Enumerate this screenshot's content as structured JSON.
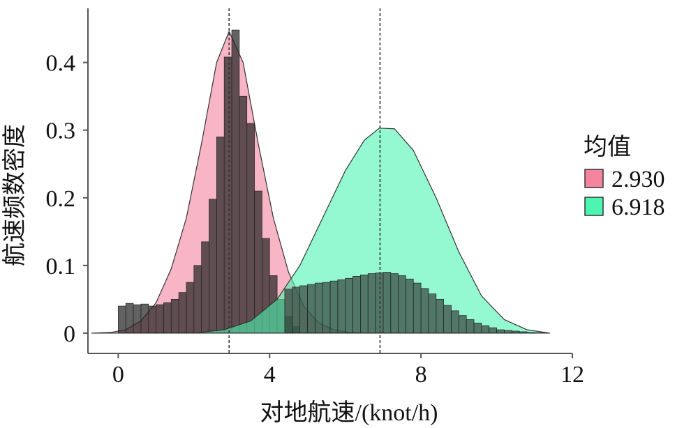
{
  "chart_data": {
    "type": "area",
    "xlabel": "对地航速/(knot/h)",
    "ylabel": "航速频数密度",
    "xlim": [
      -0.8,
      12
    ],
    "ylim": [
      -0.03,
      0.48
    ],
    "xticks": [
      0,
      4,
      8,
      12
    ],
    "yticks": [
      0,
      0.1,
      0.2,
      0.3,
      0.4
    ],
    "ytick_labels": [
      "0",
      "0.1",
      "0.2",
      "0.3",
      "0.4"
    ],
    "grid": false,
    "legend": {
      "title": "均值",
      "placement": "right",
      "entries": [
        {
          "label": "2.930",
          "color": "#f4839e"
        },
        {
          "label": "6.918",
          "color": "#4cf5b0"
        }
      ]
    },
    "series": [
      {
        "mean": 2.93,
        "fill": "#f4839e",
        "density_x": [
          -0.7,
          -0.2,
          0.2,
          0.6,
          1.0,
          1.4,
          1.8,
          2.2,
          2.6,
          2.93,
          3.3,
          3.7,
          4.1,
          4.5,
          4.9,
          5.3,
          5.7,
          6.1,
          6.5
        ],
        "density_y": [
          0.0,
          0.001,
          0.005,
          0.018,
          0.045,
          0.095,
          0.17,
          0.28,
          0.4,
          0.446,
          0.4,
          0.28,
          0.17,
          0.09,
          0.04,
          0.015,
          0.005,
          0.001,
          0.0
        ],
        "bin_width": 0.2,
        "bin_left": [
          0.0,
          0.2,
          0.4,
          0.6,
          0.8,
          1.0,
          1.2,
          1.4,
          1.6,
          1.8,
          2.0,
          2.2,
          2.4,
          2.6,
          2.8,
          3.0,
          3.2,
          3.4,
          3.6,
          3.8,
          4.0,
          4.2,
          4.4,
          4.6
        ],
        "bin_height": [
          0.04,
          0.044,
          0.042,
          0.043,
          0.04,
          0.042,
          0.045,
          0.05,
          0.06,
          0.075,
          0.1,
          0.135,
          0.198,
          0.29,
          0.408,
          0.448,
          0.35,
          0.31,
          0.21,
          0.14,
          0.085,
          0.05,
          0.025,
          0.01
        ]
      },
      {
        "mean": 6.918,
        "fill": "#4cf5b0",
        "density_x": [
          2.0,
          2.8,
          3.5,
          4.2,
          4.8,
          5.4,
          6.0,
          6.5,
          6.9,
          7.3,
          7.8,
          8.4,
          9.0,
          9.6,
          10.2,
          10.8,
          11.4
        ],
        "density_y": [
          0.0,
          0.005,
          0.018,
          0.05,
          0.1,
          0.17,
          0.24,
          0.285,
          0.303,
          0.302,
          0.27,
          0.2,
          0.12,
          0.055,
          0.02,
          0.005,
          0.0
        ],
        "bin_width": 0.2,
        "bin_left": [
          4.4,
          4.6,
          4.8,
          5.0,
          5.2,
          5.4,
          5.6,
          5.8,
          6.0,
          6.2,
          6.4,
          6.6,
          6.8,
          7.0,
          7.2,
          7.4,
          7.6,
          7.8,
          8.0,
          8.2,
          8.4,
          8.6,
          8.8,
          9.0,
          9.2,
          9.4,
          9.6,
          9.8,
          10.0,
          10.2,
          10.4,
          10.6,
          10.8,
          11.0
        ],
        "bin_height": [
          0.065,
          0.068,
          0.07,
          0.072,
          0.074,
          0.075,
          0.077,
          0.079,
          0.081,
          0.084,
          0.086,
          0.088,
          0.089,
          0.09,
          0.088,
          0.085,
          0.08,
          0.074,
          0.066,
          0.058,
          0.05,
          0.041,
          0.033,
          0.026,
          0.02,
          0.015,
          0.011,
          0.008,
          0.005,
          0.004,
          0.003,
          0.002,
          0.001,
          0.0005
        ]
      }
    ]
  }
}
